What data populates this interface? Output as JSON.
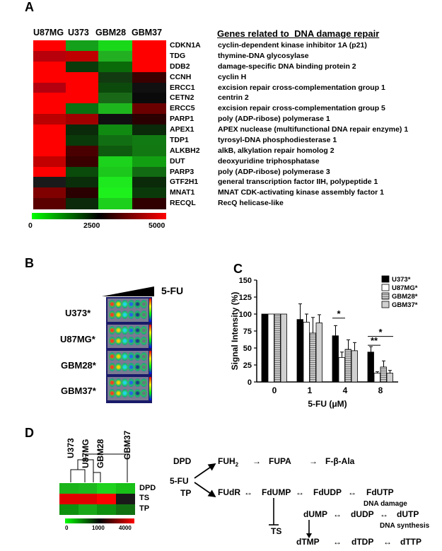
{
  "panel_a": {
    "letter": "A",
    "columns": [
      "U87MG",
      "U373",
      "GBM28",
      "GBM37"
    ],
    "genes_header": "Genes related to  DNA damage repair",
    "genes": [
      {
        "symbol": "CDKN1A",
        "desc": "cyclin-dependent kinase inhibitor 1A (p21)"
      },
      {
        "symbol": "TDG",
        "desc": "thymine-DNA glycosylase"
      },
      {
        "symbol": "DDB2",
        "desc": "damage-specific DNA binding protein 2"
      },
      {
        "symbol": "CCNH",
        "desc": "cyclin H"
      },
      {
        "symbol": "ERCC1",
        "desc": "excision repair cross-complementation group 1"
      },
      {
        "symbol": "CETN2",
        "desc": "centrin 2"
      },
      {
        "symbol": "ERCC5",
        "desc": "excision repair cross-complementation group 5"
      },
      {
        "symbol": "PARP1",
        "desc": "poly (ADP-ribose) polymerase 1"
      },
      {
        "symbol": "APEX1",
        "desc": "APEX nuclease (multifunctional DNA repair enzyme) 1"
      },
      {
        "symbol": "TDP1",
        "desc": "tyrosyl-DNA phosphodiesterase 1"
      },
      {
        "symbol": "ALKBH2",
        "desc": "alkB, alkylation repair homolog 2"
      },
      {
        "symbol": "DUT",
        "desc": "deoxyuridine triphosphatase"
      },
      {
        "symbol": "PARP3",
        "desc": "poly (ADP-ribose) polymerase 3"
      },
      {
        "symbol": "GTF2H1",
        "desc": "general transcription factor IIH, polypeptide 1"
      },
      {
        "symbol": "MNAT1",
        "desc": "MNAT CDK-activating kinase assembly factor 1"
      },
      {
        "symbol": "RECQL",
        "desc": "RecQ helicase-like"
      }
    ],
    "heatmap_colors": [
      [
        "#ff0000",
        "#14a01a",
        "#19d81a",
        "#ff0000"
      ],
      [
        "#b8000a",
        "#c00000",
        "#22b022",
        "#ff0000"
      ],
      [
        "#ff0000",
        "#0a3a0a",
        "#0a6a0a",
        "#ff0000"
      ],
      [
        "#ff0000",
        "#ff0000",
        "#123a10",
        "#3a0000"
      ],
      [
        "#b4000e",
        "#ff0000",
        "#0c4a0c",
        "#101010"
      ],
      [
        "#ff0000",
        "#ff0000",
        "#186818",
        "#0a0a0a"
      ],
      [
        "#ff0000",
        "#0a7010",
        "#1db61d",
        "#6a0000"
      ],
      [
        "#ba0000",
        "#a00000",
        "#101010",
        "#2a0000"
      ],
      [
        "#ff0000",
        "#0a2a0a",
        "#108a10",
        "#0a2a0a"
      ],
      [
        "#ff0000",
        "#0a3a0a",
        "#126e12",
        "#127a12"
      ],
      [
        "#ff0000",
        "#4a0000",
        "#0e5a0e",
        "#127812"
      ],
      [
        "#c20000",
        "#3a0000",
        "#1cd21c",
        "#12a012"
      ],
      [
        "#ff0000",
        "#0a4a0a",
        "#1cc81c",
        "#126a12"
      ],
      [
        "#1a1a1a",
        "#0a2e0a",
        "#1ee81e",
        "#0a2a0a"
      ],
      [
        "#800000",
        "#2a0000",
        "#1ef01e",
        "#0a3a0a"
      ],
      [
        "#5a0000",
        "#0a2a0a",
        "#1cd01c",
        "#300000"
      ]
    ],
    "colorbar_ticks": [
      "0",
      "2500",
      "5000"
    ]
  },
  "panel_b": {
    "letter": "B",
    "drug": "5-FU",
    "rows": [
      "U373*",
      "U87MG*",
      "GBM28*",
      "GBM37*"
    ]
  },
  "panel_c": {
    "letter": "C",
    "sig_marks": [
      "*",
      "*",
      "**"
    ]
  },
  "chart_data": {
    "type": "bar",
    "categories": [
      "0",
      "1",
      "4",
      "8"
    ],
    "xlabel": "5-FU (μM)",
    "ylabel": "Signal Intensity (%)",
    "ylim": [
      0,
      150
    ],
    "yticks": [
      "0",
      "25",
      "50",
      "75",
      "100",
      "125",
      "150"
    ],
    "legend_position": "top-right",
    "series": [
      {
        "name": "U373*",
        "color": "#000000",
        "values": [
          100,
          92,
          68,
          44
        ],
        "errors": [
          0,
          23,
          15,
          8
        ]
      },
      {
        "name": "U87MG*",
        "color": "#ffffff",
        "values": [
          100,
          88,
          36,
          13
        ],
        "errors": [
          0,
          12,
          8,
          2
        ]
      },
      {
        "name": "GBM28*",
        "color": "#b0b0b0",
        "values": [
          100,
          72,
          48,
          22
        ],
        "errors": [
          0,
          23,
          14,
          9
        ]
      },
      {
        "name": "GBM37*",
        "color": "#d0d0d0",
        "values": [
          100,
          87,
          46,
          13
        ],
        "errors": [
          0,
          12,
          12,
          4
        ]
      }
    ]
  },
  "panel_d": {
    "letter": "D",
    "columns": [
      "U373",
      "U87MG",
      "GBM28",
      "GBM37"
    ],
    "rows": [
      "DPD",
      "TS",
      "TP"
    ],
    "heatmap_colors": [
      [
        "#1ab41a",
        "#1db81d",
        "#1ed21e",
        "#18c018"
      ],
      [
        "#e00000",
        "#e00000",
        "#ff0000",
        "#1a1a1a"
      ],
      [
        "#10900f",
        "#1aa81a",
        "#109010",
        "#127012"
      ]
    ],
    "colorbar_ticks": [
      "0",
      "1000",
      "4000"
    ],
    "pathway": {
      "fu": "5-FU",
      "dpd": "DPD",
      "tp": "TP",
      "fuh2_base": "FUH",
      "fuh2_sub": "2",
      "fupa": "FUPA",
      "fbala": "F-β-Ala",
      "fudr": "FUdR",
      "fdump": "FdUMP",
      "fdudp": "FdUDP",
      "fdutp": "FdUTP",
      "dna_damage": "DNA damage",
      "ts": "TS",
      "dump": "dUMP",
      "dudp": "dUDP",
      "dutp": "dUTP",
      "dna_synthesis": "DNA synthesis",
      "dtmp": "dTMP",
      "dtdp": "dTDP",
      "dttp": "dTTP",
      "arrow_right": "→",
      "arrow_both": "↔"
    }
  }
}
